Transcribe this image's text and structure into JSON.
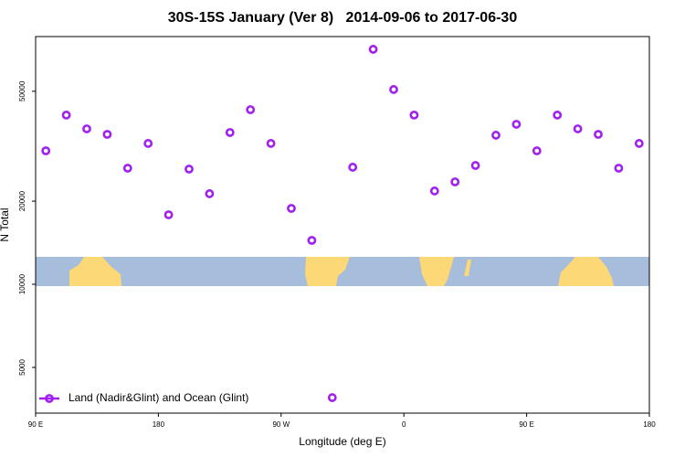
{
  "chart_data": {
    "type": "scatter",
    "title": "30S-15S January (Ver 8)   2014-09-06 to 2017-06-30",
    "x_label": "Longitude (deg E)",
    "y_label": "N Total",
    "x": [
      97.5,
      112.5,
      127.5,
      142.5,
      157.5,
      172.5,
      187.5,
      202.5,
      217.5,
      232.5,
      247.5,
      262.5,
      277.5,
      292.5,
      307.5,
      322.5,
      337.5,
      352.5,
      367.5,
      382.5,
      397.5,
      412.5,
      427.5,
      442.5,
      457.5,
      472.5,
      487.5,
      502.5,
      517.5,
      532.5
    ],
    "series": [
      {
        "name": "Land (Nadir&Glint) and Ocean (Glint)",
        "color": "#a020f0",
        "values": [
          30430,
          41000,
          36550,
          34900,
          26330,
          32360,
          17850,
          26130,
          21280,
          35450,
          42890,
          32360,
          18830,
          14420,
          3886,
          26540,
          70960,
          50730,
          41000,
          21770,
          23490,
          26930,
          34660,
          37970,
          30430,
          41000,
          36550,
          34900,
          26330,
          32360
        ]
      }
    ],
    "xlim": [
      90,
      540
    ],
    "xticks": [
      {
        "value": 90,
        "label": "90 E"
      },
      180,
      {
        "value": 270,
        "label": "90 W"
      },
      {
        "value": 360,
        "label": "0"
      },
      {
        "value": 450,
        "label": "90 E"
      },
      {
        "value": 540,
        "label": "180"
      }
    ],
    "ylim": [
      3415,
      78900
    ],
    "yticks": [
      5000,
      10000,
      20000,
      50000
    ],
    "log_y": true,
    "legend_position": "bottom-left"
  }
}
